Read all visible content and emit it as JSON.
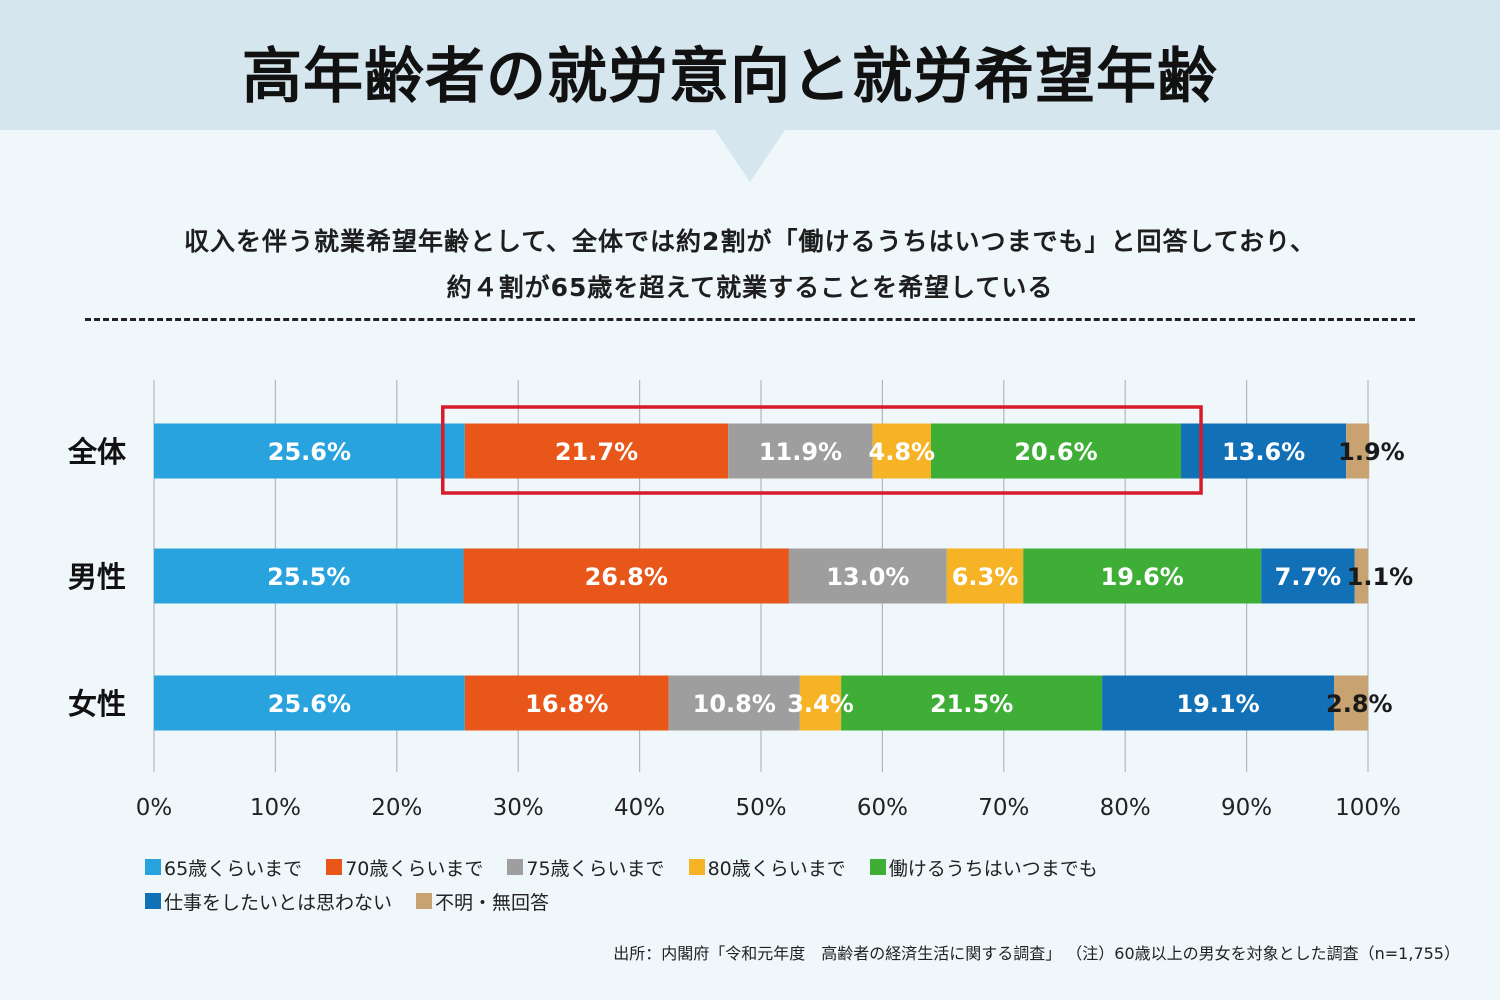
{
  "title": "高年齢者の就労意向と就労希望年齢",
  "subtitle": {
    "line1": "収入を伴う就業希望年齢として、全体では約2割が「働けるうちはいつまでも」と回答しており、",
    "line2": "約４割が65歳を超えて就業することを希望している"
  },
  "source": "出所：内閣府「令和元年度　高齢者の経済生活に関する調査」 （注）60歳以上の男女を対象とした調査（n=1,755）",
  "colors": {
    "c65": "#29a3de",
    "c70": "#e8561a",
    "c75": "#9e9e9e",
    "c80": "#f5b325",
    "cwork": "#3fae37",
    "cno": "#1170b6",
    "cunk": "#c8a270",
    "highlight": "#d81b2b",
    "grid": "#b0b8bf"
  },
  "chart_data": {
    "type": "bar",
    "orientation": "horizontal-stacked",
    "categories": [
      "全体",
      "男性",
      "女性"
    ],
    "series": [
      {
        "name": "65歳くらいまで",
        "color": "#29a3de",
        "values": [
          25.6,
          25.5,
          25.6
        ]
      },
      {
        "name": "70歳くらいまで",
        "color": "#e8561a",
        "values": [
          21.7,
          26.8,
          16.8
        ]
      },
      {
        "name": "75歳くらいまで",
        "color": "#9e9e9e",
        "values": [
          11.9,
          13.0,
          10.8
        ]
      },
      {
        "name": "80歳くらいまで",
        "color": "#f5b325",
        "values": [
          4.8,
          6.3,
          3.4
        ]
      },
      {
        "name": "働けるうちはいつまでも",
        "color": "#3fae37",
        "values": [
          20.6,
          19.6,
          21.5
        ]
      },
      {
        "name": "仕事をしたいとは思わない",
        "color": "#1170b6",
        "values": [
          13.6,
          7.7,
          19.1
        ]
      },
      {
        "name": "不明・無回答",
        "color": "#c8a270",
        "values": [
          1.9,
          1.1,
          2.8
        ]
      }
    ],
    "value_labels": [
      [
        "25.6%",
        "21.7%",
        "11.9%",
        "4.8%",
        "20.6%",
        "13.6%",
        "1.9%"
      ],
      [
        "25.5%",
        "26.8%",
        "13.0%",
        "6.3%",
        "19.6%",
        "7.7%",
        "1.1%"
      ],
      [
        "25.6%",
        "16.8%",
        "10.8%",
        "3.4%",
        "21.5%",
        "19.1%",
        "2.8%"
      ]
    ],
    "x_ticks": [
      "0%",
      "10%",
      "20%",
      "30%",
      "40%",
      "50%",
      "60%",
      "70%",
      "80%",
      "90%",
      "100%"
    ],
    "xlim": [
      0,
      100
    ],
    "grid": true,
    "legend_position": "bottom",
    "highlight": {
      "category": "全体",
      "from_series": "70歳くらいまで",
      "to_series": "働けるうちはいつまでも"
    }
  }
}
